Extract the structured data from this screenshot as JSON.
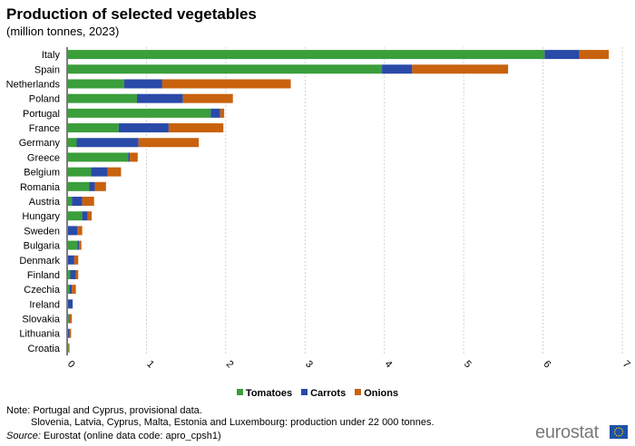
{
  "title": "Production of selected vegetables",
  "subtitle": "(million tonnes, 2023)",
  "chart_data": {
    "type": "bar",
    "orientation": "horizontal",
    "stacked": true,
    "categories": [
      "Italy",
      "Spain",
      "Netherlands",
      "Poland",
      "Portugal",
      "France",
      "Germany",
      "Greece",
      "Belgium",
      "Romania",
      "Austria",
      "Hungary",
      "Sweden",
      "Bulgaria",
      "Denmark",
      "Finland",
      "Czechia",
      "Ireland",
      "Slovakia",
      "Lithuania",
      "Croatia"
    ],
    "series": [
      {
        "name": "Tomatoes",
        "color": "#3a9e3a",
        "values": [
          6.02,
          3.97,
          0.72,
          0.88,
          1.81,
          0.65,
          0.12,
          0.77,
          0.3,
          0.28,
          0.06,
          0.19,
          0.01,
          0.13,
          0.01,
          0.04,
          0.03,
          0.01,
          0.02,
          0.01,
          0.02
        ]
      },
      {
        "name": "Carrots",
        "color": "#2a4aa8",
        "values": [
          0.44,
          0.38,
          0.48,
          0.58,
          0.12,
          0.63,
          0.78,
          0.02,
          0.21,
          0.07,
          0.13,
          0.07,
          0.12,
          0.02,
          0.08,
          0.07,
          0.03,
          0.06,
          0.01,
          0.02,
          0.0
        ]
      },
      {
        "name": "Onions",
        "color": "#c8620e",
        "values": [
          0.37,
          1.21,
          1.62,
          0.63,
          0.05,
          0.69,
          0.76,
          0.1,
          0.17,
          0.14,
          0.15,
          0.05,
          0.06,
          0.03,
          0.05,
          0.03,
          0.05,
          0.0,
          0.03,
          0.02,
          0.01
        ]
      }
    ],
    "xlim": [
      0,
      7
    ],
    "xticks": [
      "0",
      "1",
      "2",
      "3",
      "4",
      "5",
      "6",
      "7"
    ],
    "grid": "vertical dashed",
    "legend": "bottom"
  },
  "notes": {
    "line1": "Note: Portugal and Cyprus, provisional data.",
    "line2": "Slovenia, Latvia, Cyprus, Malta, Estonia and Luxembourg: production under 22 000 tonnes."
  },
  "source": {
    "label": "Source:",
    "text": " Eurostat (online data code: apro_cpsh1)"
  },
  "logo": "eurostat"
}
